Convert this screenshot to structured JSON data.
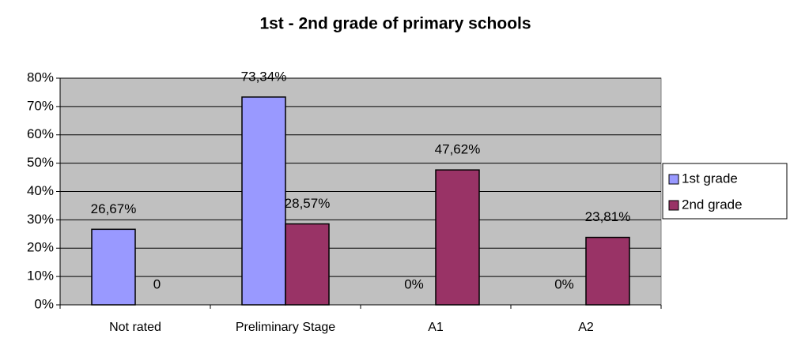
{
  "chart_data": {
    "type": "bar",
    "title": "1st - 2nd grade of primary schools",
    "categories": [
      "Not rated",
      "Preliminary Stage",
      "A1",
      "A2"
    ],
    "series": [
      {
        "name": "1st grade",
        "color": "#9999ff",
        "values": [
          26.67,
          73.34,
          0,
          0
        ],
        "value_labels": [
          "26,67%",
          "73,34%",
          "0%",
          "0%"
        ]
      },
      {
        "name": "2nd grade",
        "color": "#993366",
        "values": [
          0,
          28.57,
          47.62,
          23.81
        ],
        "value_labels": [
          "0",
          "28,57%",
          "47,62%",
          "23,81%"
        ]
      }
    ],
    "ylim": [
      0,
      80
    ],
    "yticks": [
      {
        "value": 0,
        "label": "0%"
      },
      {
        "value": 10,
        "label": "10%"
      },
      {
        "value": 20,
        "label": "20%"
      },
      {
        "value": 30,
        "label": "30%"
      },
      {
        "value": 40,
        "label": "40%"
      },
      {
        "value": 50,
        "label": "50%"
      },
      {
        "value": 60,
        "label": "60%"
      },
      {
        "value": 70,
        "label": "70%"
      },
      {
        "value": 80,
        "label": "80%"
      }
    ],
    "grid": true,
    "legend": "right"
  }
}
